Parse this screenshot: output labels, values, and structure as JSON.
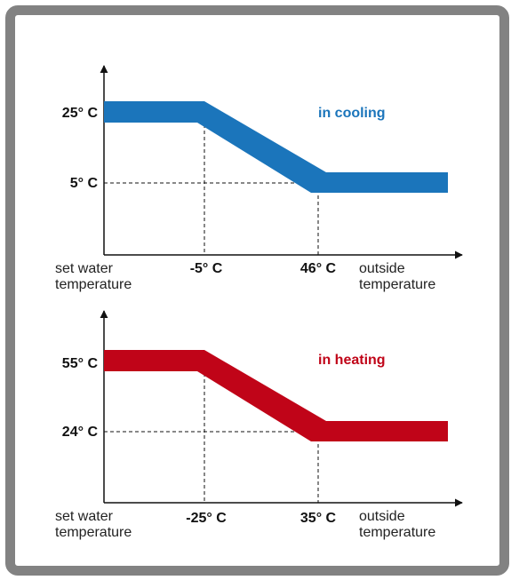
{
  "chart_data": [
    {
      "type": "line",
      "annotation": "in cooling",
      "color": "#1b75bb",
      "x": [
        "-5° C",
        "46° C"
      ],
      "y": [
        "25° C",
        "5° C"
      ],
      "points": [
        {
          "x": "-5° C",
          "y": "25° C"
        },
        {
          "x": "46° C",
          "y": "5° C"
        }
      ],
      "ylabel": [
        "set water",
        "temperature"
      ],
      "xlabel": [
        "outside",
        "temperature"
      ],
      "grid": false
    },
    {
      "type": "line",
      "annotation": "in heating",
      "color": "#c00418",
      "x": [
        "-25° C",
        "35° C"
      ],
      "y": [
        "55° C",
        "24° C"
      ],
      "points": [
        {
          "x": "-25° C",
          "y": "55° C"
        },
        {
          "x": "35° C",
          "y": "24° C"
        }
      ],
      "ylabel": [
        "set water",
        "temperature"
      ],
      "xlabel": [
        "outside",
        "temperature"
      ],
      "grid": false
    }
  ]
}
